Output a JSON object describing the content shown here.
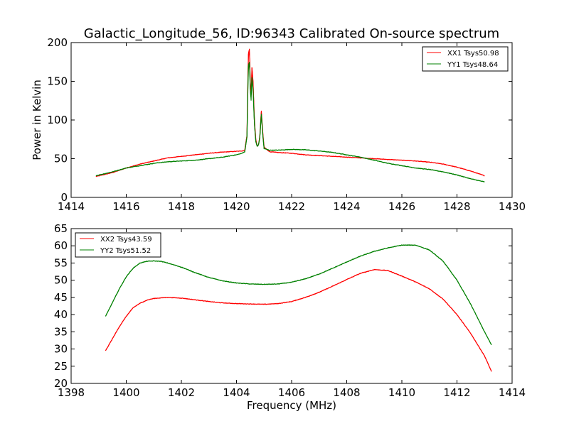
{
  "chart_data": [
    {
      "type": "line",
      "title": "Galactic_Longitude_56, ID:96343 Calibrated On-source spectrum",
      "xlabel": "",
      "ylabel": "Power in Kelvin",
      "xlim": [
        1414,
        1430
      ],
      "ylim": [
        0,
        200
      ],
      "xticks": [
        1414,
        1416,
        1418,
        1420,
        1422,
        1424,
        1426,
        1428,
        1430
      ],
      "yticks": [
        0,
        50,
        100,
        150,
        200
      ],
      "grid": false,
      "legend_position": "top-right",
      "series": [
        {
          "name": "XX1 Tsys50.98",
          "color": "#ff0000",
          "points": [
            [
              1414.9,
              27
            ],
            [
              1415.5,
              32
            ],
            [
              1416,
              38
            ],
            [
              1416.5,
              43
            ],
            [
              1417,
              47
            ],
            [
              1417.5,
              51
            ],
            [
              1418,
              53
            ],
            [
              1418.5,
              55
            ],
            [
              1419,
              57
            ],
            [
              1419.5,
              58.5
            ],
            [
              1420,
              59.5
            ],
            [
              1420.2,
              60
            ],
            [
              1420.3,
              61
            ],
            [
              1420.38,
              80
            ],
            [
              1420.43,
              185
            ],
            [
              1420.47,
              192
            ],
            [
              1420.5,
              150
            ],
            [
              1420.53,
              130
            ],
            [
              1420.56,
              168
            ],
            [
              1420.6,
              150
            ],
            [
              1420.65,
              100
            ],
            [
              1420.7,
              75
            ],
            [
              1420.75,
              66
            ],
            [
              1420.8,
              68
            ],
            [
              1420.85,
              80
            ],
            [
              1420.9,
              112
            ],
            [
              1420.95,
              85
            ],
            [
              1421,
              65
            ],
            [
              1421.2,
              59
            ],
            [
              1421.5,
              58
            ],
            [
              1422,
              57
            ],
            [
              1422.5,
              55
            ],
            [
              1423,
              54
            ],
            [
              1423.5,
              53
            ],
            [
              1424,
              52
            ],
            [
              1424.5,
              51
            ],
            [
              1425,
              50
            ],
            [
              1425.5,
              49
            ],
            [
              1426,
              48
            ],
            [
              1426.5,
              47
            ],
            [
              1427,
              45.5
            ],
            [
              1427.5,
              43
            ],
            [
              1428,
              39
            ],
            [
              1428.5,
              34
            ],
            [
              1429,
              28
            ]
          ]
        },
        {
          "name": "YY1 Tsys48.64",
          "color": "#008000",
          "points": [
            [
              1414.9,
              28
            ],
            [
              1415.5,
              33
            ],
            [
              1416,
              38
            ],
            [
              1416.5,
              41
            ],
            [
              1417,
              44
            ],
            [
              1417.5,
              46
            ],
            [
              1418,
              47
            ],
            [
              1418.5,
              48
            ],
            [
              1419,
              50
            ],
            [
              1419.5,
              52
            ],
            [
              1420,
              55
            ],
            [
              1420.2,
              57
            ],
            [
              1420.3,
              59
            ],
            [
              1420.38,
              78
            ],
            [
              1420.43,
              170
            ],
            [
              1420.47,
              175
            ],
            [
              1420.5,
              140
            ],
            [
              1420.53,
              125
            ],
            [
              1420.56,
              155
            ],
            [
              1420.6,
              140
            ],
            [
              1420.65,
              95
            ],
            [
              1420.7,
              72
            ],
            [
              1420.75,
              66
            ],
            [
              1420.8,
              68
            ],
            [
              1420.85,
              78
            ],
            [
              1420.9,
              108
            ],
            [
              1420.95,
              82
            ],
            [
              1421,
              63
            ],
            [
              1421.2,
              61
            ],
            [
              1421.5,
              61
            ],
            [
              1422,
              62
            ],
            [
              1422.5,
              61.5
            ],
            [
              1423,
              60
            ],
            [
              1423.5,
              58
            ],
            [
              1424,
              55
            ],
            [
              1424.5,
              52
            ],
            [
              1425,
              48
            ],
            [
              1425.5,
              44
            ],
            [
              1426,
              41
            ],
            [
              1426.5,
              38
            ],
            [
              1427,
              36
            ],
            [
              1427.5,
              33
            ],
            [
              1428,
              29
            ],
            [
              1428.5,
              24
            ],
            [
              1429,
              20
            ]
          ]
        }
      ]
    },
    {
      "type": "line",
      "title": "",
      "xlabel": "Frequency (MHz)",
      "ylabel": "",
      "xlim": [
        1398,
        1414
      ],
      "ylim": [
        20,
        65
      ],
      "xticks": [
        1398,
        1400,
        1402,
        1404,
        1406,
        1408,
        1410,
        1412,
        1414
      ],
      "yticks": [
        20,
        25,
        30,
        35,
        40,
        45,
        50,
        55,
        60,
        65
      ],
      "grid": false,
      "legend_position": "top-left",
      "series": [
        {
          "name": "XX2 Tsys43.59",
          "color": "#ff0000",
          "points": [
            [
              1399.25,
              29.5
            ],
            [
              1399.5,
              33
            ],
            [
              1399.75,
              36.5
            ],
            [
              1400,
              39.5
            ],
            [
              1400.25,
              42
            ],
            [
              1400.5,
              43.3
            ],
            [
              1400.75,
              44.2
            ],
            [
              1401,
              44.7
            ],
            [
              1401.5,
              45
            ],
            [
              1402,
              44.8
            ],
            [
              1402.5,
              44.3
            ],
            [
              1403,
              43.8
            ],
            [
              1403.5,
              43.4
            ],
            [
              1404,
              43.2
            ],
            [
              1404.5,
              43.1
            ],
            [
              1405,
              43
            ],
            [
              1405.5,
              43.2
            ],
            [
              1406,
              43.8
            ],
            [
              1406.5,
              45
            ],
            [
              1407,
              46.5
            ],
            [
              1407.5,
              48.3
            ],
            [
              1408,
              50.2
            ],
            [
              1408.5,
              52
            ],
            [
              1409,
              53.1
            ],
            [
              1409.5,
              52.8
            ],
            [
              1410,
              51.2
            ],
            [
              1410.5,
              49.5
            ],
            [
              1411,
              47.5
            ],
            [
              1411.5,
              44.5
            ],
            [
              1412,
              40
            ],
            [
              1412.5,
              34.5
            ],
            [
              1413,
              28
            ],
            [
              1413.25,
              23.5
            ]
          ]
        },
        {
          "name": "YY2 Tsys51.52",
          "color": "#008000",
          "points": [
            [
              1399.25,
              39.5
            ],
            [
              1399.5,
              43.5
            ],
            [
              1399.75,
              47.5
            ],
            [
              1400,
              51
            ],
            [
              1400.25,
              53.5
            ],
            [
              1400.5,
              55
            ],
            [
              1400.75,
              55.5
            ],
            [
              1401,
              55.6
            ],
            [
              1401.25,
              55.5
            ],
            [
              1401.5,
              55
            ],
            [
              1402,
              53.8
            ],
            [
              1402.5,
              52.2
            ],
            [
              1403,
              50.8
            ],
            [
              1403.5,
              49.8
            ],
            [
              1404,
              49.2
            ],
            [
              1404.5,
              48.9
            ],
            [
              1405,
              48.8
            ],
            [
              1405.5,
              48.9
            ],
            [
              1406,
              49.4
            ],
            [
              1406.5,
              50.4
            ],
            [
              1407,
              51.8
            ],
            [
              1407.5,
              53.5
            ],
            [
              1408,
              55.3
            ],
            [
              1408.5,
              57
            ],
            [
              1409,
              58.4
            ],
            [
              1409.5,
              59.4
            ],
            [
              1410,
              60.2
            ],
            [
              1410.5,
              60.2
            ],
            [
              1411,
              58.8
            ],
            [
              1411.5,
              55.5
            ],
            [
              1412,
              50
            ],
            [
              1412.5,
              43
            ],
            [
              1413,
              35
            ],
            [
              1413.25,
              31.2
            ]
          ]
        }
      ]
    }
  ]
}
